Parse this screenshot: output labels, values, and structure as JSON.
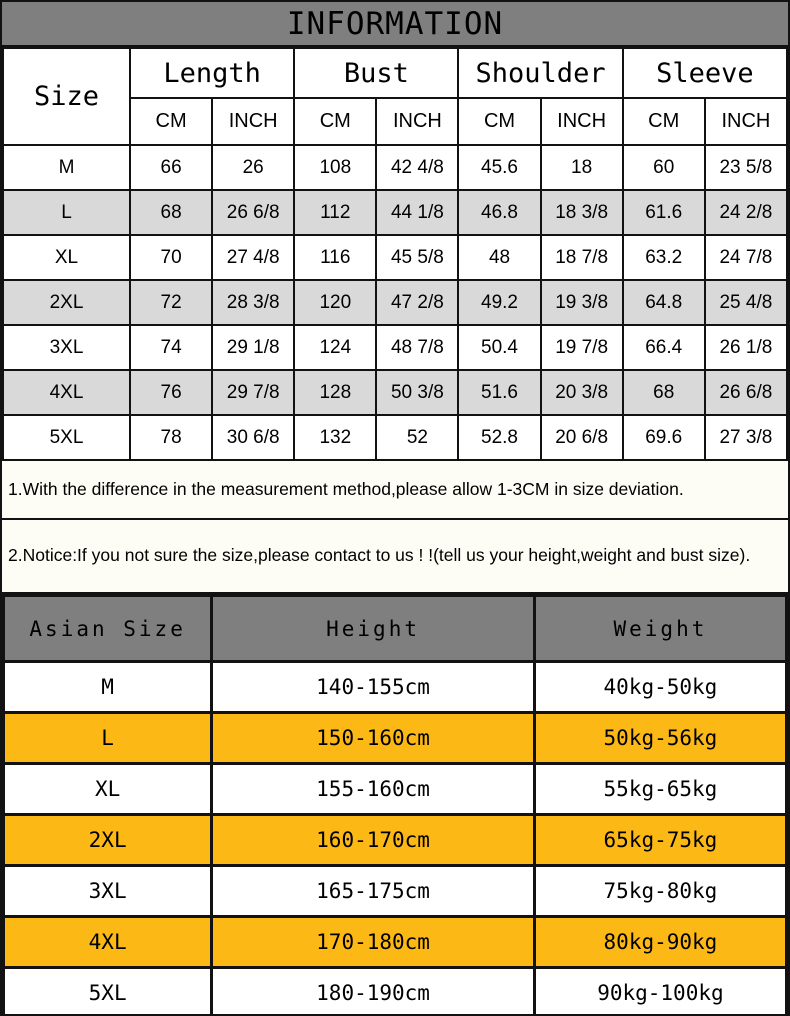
{
  "title": "INFORMATION",
  "colors": {
    "header_gray": "#7f7f7f",
    "row_gray": "#d9d9d9",
    "row_orange": "#FCB814",
    "border": "#121212",
    "note_background": "#fdfdf6"
  },
  "size_table": {
    "corner_label": "Size",
    "groups": [
      {
        "label": "Length"
      },
      {
        "label": "Bust"
      },
      {
        "label": "Shoulder"
      },
      {
        "label": "Sleeve"
      }
    ],
    "units": [
      "CM",
      "INCH",
      "CM",
      "INCH",
      "CM",
      "INCH",
      "CM",
      "INCH"
    ],
    "rows": [
      {
        "size": "M",
        "values": [
          "66",
          "26",
          "108",
          "42 4/8",
          "45.6",
          "18",
          "60",
          "23 5/8"
        ]
      },
      {
        "size": "L",
        "values": [
          "68",
          "26 6/8",
          "112",
          "44 1/8",
          "46.8",
          "18 3/8",
          "61.6",
          "24 2/8"
        ]
      },
      {
        "size": "XL",
        "values": [
          "70",
          "27 4/8",
          "116",
          "45 5/8",
          "48",
          "18 7/8",
          "63.2",
          "24 7/8"
        ]
      },
      {
        "size": "2XL",
        "values": [
          "72",
          "28 3/8",
          "120",
          "47 2/8",
          "49.2",
          "19 3/8",
          "64.8",
          "25 4/8"
        ]
      },
      {
        "size": "3XL",
        "values": [
          "74",
          "29 1/8",
          "124",
          "48 7/8",
          "50.4",
          "19 7/8",
          "66.4",
          "26 1/8"
        ]
      },
      {
        "size": "4XL",
        "values": [
          "76",
          "29 7/8",
          "128",
          "50 3/8",
          "51.6",
          "20 3/8",
          "68",
          "26 6/8"
        ]
      },
      {
        "size": "5XL",
        "values": [
          "78",
          "30 6/8",
          "132",
          "52",
          "52.8",
          "20 6/8",
          "69.6",
          "27 3/8"
        ]
      }
    ]
  },
  "notes": [
    "1.With the difference in the measurement method,please allow 1-3CM in size deviation.",
    "2.Notice:If you not sure the size,please contact to us ! !(tell us your height,weight and bust size)."
  ],
  "fit_table": {
    "headers": [
      "Asian Size",
      "Height",
      "Weight"
    ],
    "rows": [
      {
        "size": "M",
        "height": "140-155cm",
        "weight": "40kg-50kg"
      },
      {
        "size": "L",
        "height": "150-160cm",
        "weight": "50kg-56kg"
      },
      {
        "size": "XL",
        "height": "155-160cm",
        "weight": "55kg-65kg"
      },
      {
        "size": "2XL",
        "height": "160-170cm",
        "weight": "65kg-75kg"
      },
      {
        "size": "3XL",
        "height": "165-175cm",
        "weight": "75kg-80kg"
      },
      {
        "size": "4XL",
        "height": "170-180cm",
        "weight": "80kg-90kg"
      },
      {
        "size": "5XL",
        "height": "180-190cm",
        "weight": "90kg-100kg"
      }
    ]
  }
}
